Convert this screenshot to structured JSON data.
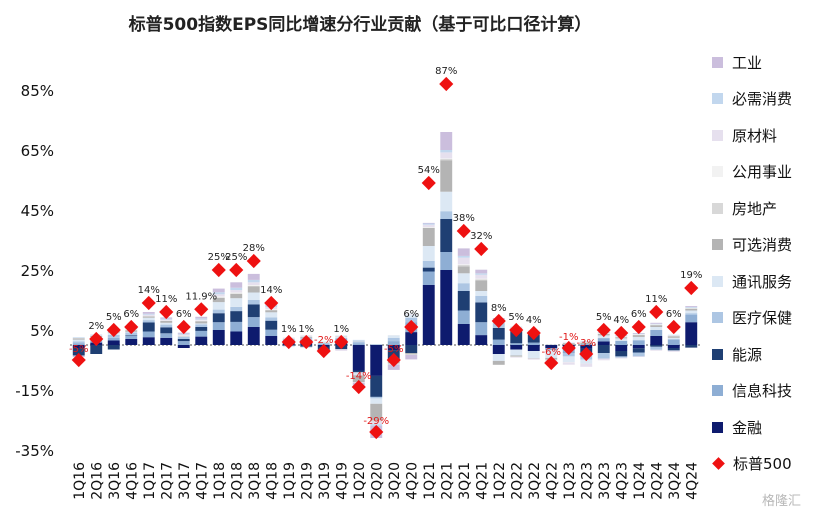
{
  "chart_data": {
    "type": "bar",
    "title": "标普500指数EPS同比增速分行业贡献（基于可比口径计算）",
    "ylim": [
      -35,
      95
    ],
    "yticks": [
      "-35%",
      "-15%",
      "5%",
      "25%",
      "45%",
      "65%",
      "85%"
    ],
    "categories": [
      "1Q16",
      "2Q16",
      "3Q16",
      "4Q16",
      "1Q17",
      "2Q17",
      "3Q17",
      "4Q17",
      "1Q18",
      "2Q18",
      "3Q18",
      "4Q18",
      "1Q19",
      "2Q19",
      "3Q19",
      "4Q19",
      "1Q20",
      "2Q20",
      "3Q20",
      "4Q20",
      "1Q21",
      "2Q21",
      "3Q21",
      "4Q21",
      "1Q22",
      "2Q22",
      "3Q22",
      "4Q22",
      "1Q23",
      "2Q23",
      "3Q23",
      "4Q23",
      "1Q24",
      "2Q24",
      "3Q24",
      "4Q24"
    ],
    "series": [
      {
        "name": "工业",
        "color": "#cbbedd",
        "values": [
          -0.3,
          0.1,
          0.1,
          0.2,
          0.6,
          0.4,
          0.3,
          0.5,
          1.2,
          1.8,
          2.0,
          0.9,
          0.1,
          0.1,
          -0.3,
          -0.2,
          -0.9,
          -4.0,
          -1.8,
          -1.5,
          0.2,
          6.0,
          2.5,
          1.2,
          0.4,
          -0.1,
          0.2,
          -0.2,
          -0.1,
          -0.1,
          0.1,
          0.2,
          0.2,
          0.3,
          -0.1,
          0.3
        ]
      },
      {
        "name": "必需消费",
        "color": "#c2d7ee",
        "values": [
          0.2,
          0.2,
          0.2,
          0.2,
          0.3,
          0.3,
          0.3,
          0.4,
          0.7,
          0.8,
          0.8,
          0.6,
          0.1,
          0.1,
          0.1,
          0.1,
          0.3,
          -0.6,
          0.1,
          0.1,
          0.4,
          0.8,
          0.6,
          0.5,
          0.2,
          0.1,
          0.2,
          -0.1,
          0.1,
          0.2,
          0.2,
          0.2,
          0.2,
          0.2,
          0.2,
          0.3
        ]
      },
      {
        "name": "原材料",
        "color": "#e6e0ee",
        "values": [
          -0.2,
          0.0,
          0.1,
          0.1,
          0.4,
          0.3,
          0.3,
          0.3,
          0.7,
          0.8,
          0.9,
          0.6,
          -0.1,
          -0.2,
          -0.2,
          -0.2,
          -0.2,
          -0.9,
          -0.1,
          0.2,
          0.8,
          2.0,
          2.2,
          1.3,
          0.7,
          0.1,
          -0.4,
          -0.6,
          -0.6,
          -0.9,
          -0.6,
          -0.3,
          -0.2,
          -0.3,
          -0.2,
          -0.1
        ]
      },
      {
        "name": "公用事业",
        "color": "#f2f2f2",
        "values": [
          0.1,
          0.1,
          0.2,
          0.2,
          0.1,
          0.1,
          0.1,
          0.2,
          0.3,
          0.3,
          0.3,
          0.3,
          0.1,
          0.1,
          0.1,
          0.1,
          0.1,
          0.1,
          0.2,
          0.1,
          0.2,
          0.2,
          0.2,
          0.2,
          0.1,
          -0.1,
          0.1,
          0.1,
          -0.1,
          0.1,
          0.2,
          0.2,
          0.2,
          0.2,
          0.2,
          0.2
        ]
      },
      {
        "name": "房地产",
        "color": "#d8d8d8",
        "values": [
          0.1,
          0.1,
          0.1,
          0.1,
          0.1,
          0.1,
          0.1,
          0.1,
          0.2,
          0.2,
          0.2,
          0.1,
          0.1,
          0.1,
          0.1,
          0.1,
          0.1,
          -0.4,
          -0.3,
          -0.2,
          0.1,
          0.4,
          0.5,
          0.4,
          0.3,
          0.2,
          0.2,
          0.1,
          0.1,
          0.1,
          0.1,
          0.1,
          0.1,
          0.1,
          0.1,
          0.1
        ]
      },
      {
        "name": "可选消费",
        "color": "#b4b4b4",
        "values": [
          0.4,
          0.4,
          0.5,
          0.5,
          0.4,
          0.6,
          0.1,
          0.7,
          1.4,
          1.4,
          2.0,
          0.7,
          0.1,
          0.3,
          0.1,
          0.1,
          -2.3,
          -5.5,
          -0.8,
          -0.4,
          6.0,
          10.5,
          2.3,
          3.5,
          -1.3,
          -0.4,
          -0.1,
          -0.6,
          0.6,
          0.5,
          0.5,
          0.4,
          0.6,
          0.6,
          0.5,
          0.6
        ]
      },
      {
        "name": "通讯服务",
        "color": "#dce8f4",
        "values": [
          0.6,
          0.3,
          0.7,
          0.2,
          0.8,
          0.6,
          0.2,
          0.3,
          2.5,
          2.9,
          2.5,
          1.7,
          -0.3,
          -0.2,
          -0.4,
          0.3,
          -1.0,
          -1.8,
          0.6,
          0.9,
          5.0,
          6.5,
          3.3,
          1.6,
          -2.3,
          -2.0,
          -2.4,
          -2.7,
          -1.9,
          -1.3,
          0.9,
          0.8,
          1.1,
          1.0,
          0.5,
          0.9
        ]
      },
      {
        "name": "医疗保健",
        "color": "#adc6e3",
        "values": [
          0.7,
          0.8,
          1.0,
          0.9,
          0.8,
          0.9,
          0.7,
          0.9,
          1.2,
          1.4,
          1.5,
          1.1,
          0.7,
          0.7,
          0.4,
          0.4,
          0.7,
          -0.5,
          1.1,
          1.6,
          2.2,
          2.6,
          2.6,
          2.2,
          1.6,
          0.8,
          0.6,
          0.1,
          -1.2,
          -2.1,
          -1.8,
          -0.4,
          -1.3,
          -1.0,
          -0.1,
          0.6
        ]
      },
      {
        "name": "能源",
        "color": "#1f3f73",
        "values": [
          -2.5,
          -3.0,
          -1.5,
          0.2,
          3.0,
          2.0,
          0.7,
          1.3,
          3.0,
          3.6,
          4.2,
          3.0,
          -0.2,
          -0.6,
          -1.2,
          -1.4,
          -0.6,
          -7.0,
          -3.6,
          -2.7,
          1.3,
          11.0,
          6.5,
          6.6,
          3.9,
          4.3,
          2.7,
          -0.1,
          -0.1,
          -1.6,
          -2.7,
          -1.8,
          -1.4,
          -0.6,
          -0.8,
          -0.9
        ]
      },
      {
        "name": "信息科技",
        "color": "#8eaed4",
        "values": [
          0.5,
          0.7,
          0.9,
          1.1,
          1.9,
          1.5,
          1.3,
          1.9,
          2.6,
          3.2,
          3.3,
          2.1,
          -0.1,
          0.1,
          0.3,
          0.6,
          0.5,
          0.2,
          1.3,
          3.2,
          4.5,
          6.0,
          4.5,
          4.3,
          1.8,
          0.6,
          0.8,
          -0.5,
          -1.0,
          0.3,
          1.1,
          1.4,
          1.6,
          2.0,
          1.9,
          2.4
        ]
      },
      {
        "name": "金融",
        "color": "#0e1b6e",
        "values": [
          -1.0,
          0.8,
          1.5,
          2.0,
          2.6,
          2.4,
          -1.0,
          2.8,
          5.0,
          4.5,
          6.0,
          3.0,
          1.2,
          1.6,
          -0.5,
          1.4,
          -8.5,
          -10.3,
          -1.7,
          4.3,
          20.0,
          25.0,
          7.0,
          3.3,
          -3.0,
          -1.5,
          -2.0,
          -1.0,
          -1.5,
          -1.2,
          1.2,
          -2.0,
          -1.1,
          3.0,
          -1.0,
          7.6
        ]
      }
    ],
    "total": {
      "name": "标普500",
      "color": "#ee1111",
      "values": [
        -5,
        2,
        5,
        6,
        14,
        11,
        6,
        11.9,
        25,
        25,
        28,
        14,
        1,
        1,
        -2,
        1,
        -14,
        -29,
        -5,
        6,
        54,
        87,
        38,
        32,
        8,
        5,
        4,
        -6,
        -1,
        -3,
        5,
        4,
        6,
        11,
        6,
        19
      ],
      "labels": [
        "-5%",
        "2%",
        "5%",
        "6%",
        "14%",
        "11%",
        "6%",
        "11.9%",
        "25%",
        "25%",
        "28%",
        "14%",
        "1%",
        "1%",
        "-2%",
        "1%",
        "-14%",
        "-29%",
        "-5%",
        "6%",
        "54%",
        "87%",
        "38%",
        "32%",
        "8%",
        "5%",
        "4%",
        "-6%",
        "-1%",
        "-3%",
        "5%",
        "4%",
        "6%",
        "11%",
        "6%",
        "19%"
      ]
    }
  },
  "legend_order": [
    "工业",
    "必需消费",
    "原材料",
    "公用事业",
    "房地产",
    "可选消费",
    "通讯服务",
    "医疗保健",
    "能源",
    "信息科技",
    "金融"
  ],
  "watermark": "格隆汇"
}
